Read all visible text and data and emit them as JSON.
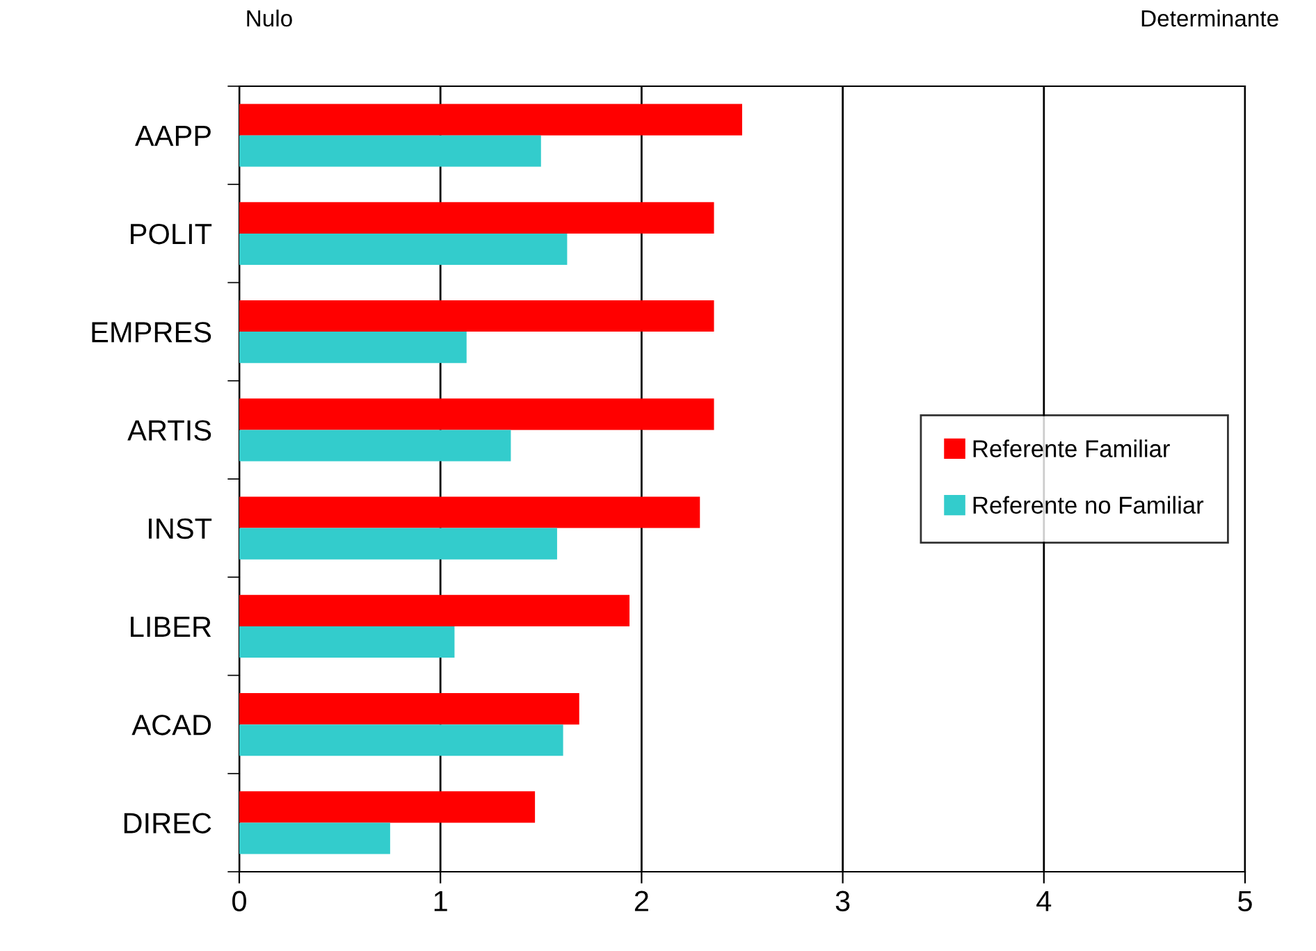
{
  "chart_data": {
    "type": "bar",
    "orientation": "horizontal",
    "categories": [
      "AAPP",
      "POLIT",
      "EMPRES",
      "ARTIS",
      "INST",
      "LIBER",
      "ACAD",
      "DIREC"
    ],
    "series": [
      {
        "name": "Referente Familiar",
        "color": "#ff0000",
        "values": [
          2.5,
          2.36,
          2.36,
          2.36,
          2.29,
          1.94,
          1.69,
          1.47
        ]
      },
      {
        "name": "Referente no Familiar",
        "color": "#33cccc",
        "values": [
          1.5,
          1.63,
          1.13,
          1.35,
          1.58,
          1.07,
          1.61,
          0.75
        ]
      }
    ],
    "xlim": [
      0,
      5
    ],
    "xticks": [
      0,
      1,
      2,
      3,
      4,
      5
    ],
    "grid": "x",
    "legend": "right",
    "annotations": [
      "Nulo",
      "Determinante"
    ]
  }
}
